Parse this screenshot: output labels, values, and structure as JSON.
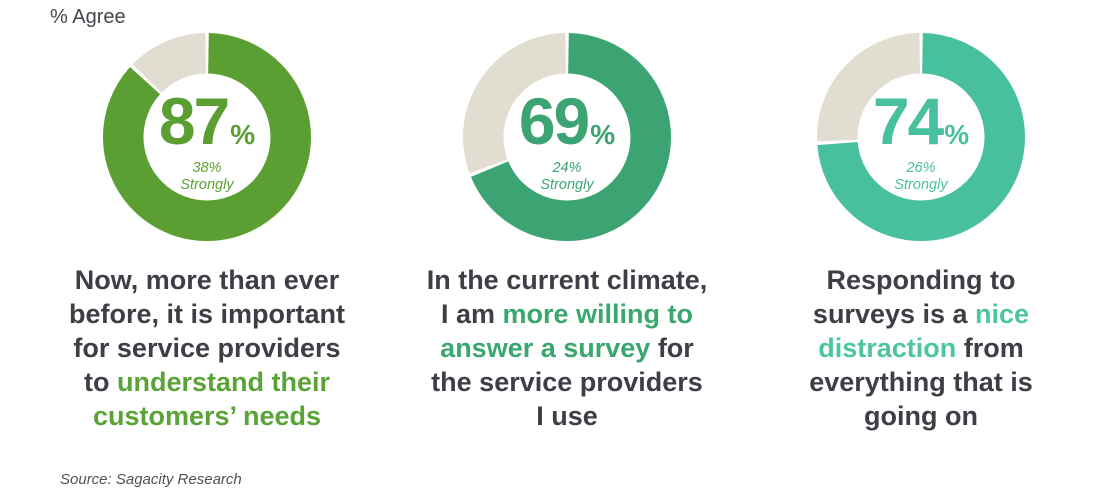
{
  "header": {
    "unit_label": "% Agree"
  },
  "footer": {
    "source": "Source: Sagacity Research"
  },
  "chart_data": {
    "type": "pie",
    "subtype": "donut-trio",
    "title": "% Agree",
    "remainder_color": "#e1ded1",
    "text_color": "#3e3e47",
    "donuts": [
      {
        "agree_pct": 87,
        "value_label": "87",
        "percent_sign": "%",
        "strongly_pct": 38,
        "strongly_value_label": "38%",
        "strongly_word": "Strongly",
        "color": "#5b9f33",
        "highlight_color": "#5aa336",
        "caption_lines": [
          [
            {
              "text": "Now, more than ever",
              "hl": false
            }
          ],
          [
            {
              "text": "before, it is important",
              "hl": false
            }
          ],
          [
            {
              "text": "for service providers",
              "hl": false
            }
          ],
          [
            {
              "text": "to ",
              "hl": false
            },
            {
              "text": "understand their",
              "hl": true
            }
          ],
          [
            {
              "text": "customers’ needs",
              "hl": true
            }
          ]
        ]
      },
      {
        "agree_pct": 69,
        "value_label": "69",
        "percent_sign": "%",
        "strongly_pct": 24,
        "strongly_value_label": "24%",
        "strongly_word": "Strongly",
        "color": "#3ca473",
        "highlight_color": "#3aa76f",
        "caption_lines": [
          [
            {
              "text": "In the current climate,",
              "hl": false
            }
          ],
          [
            {
              "text": "I am ",
              "hl": false
            },
            {
              "text": "more willing to",
              "hl": true
            }
          ],
          [
            {
              "text": "answer a survey",
              "hl": true
            },
            {
              "text": " for",
              "hl": false
            }
          ],
          [
            {
              "text": "the service providers",
              "hl": false
            }
          ],
          [
            {
              "text": "I use",
              "hl": false
            }
          ]
        ]
      },
      {
        "agree_pct": 74,
        "value_label": "74",
        "percent_sign": "%",
        "strongly_pct": 26,
        "strongly_value_label": "26%",
        "strongly_word": "Strongly",
        "color": "#49c09d",
        "highlight_color": "#4cc5a0",
        "caption_lines": [
          [
            {
              "text": "Responding to",
              "hl": false
            }
          ],
          [
            {
              "text": "surveys is a ",
              "hl": false
            },
            {
              "text": "nice",
              "hl": true
            }
          ],
          [
            {
              "text": "distraction",
              "hl": true
            },
            {
              "text": " from",
              "hl": false
            }
          ],
          [
            {
              "text": "everything that is",
              "hl": false
            }
          ],
          [
            {
              "text": "going on",
              "hl": false
            }
          ]
        ]
      }
    ]
  }
}
